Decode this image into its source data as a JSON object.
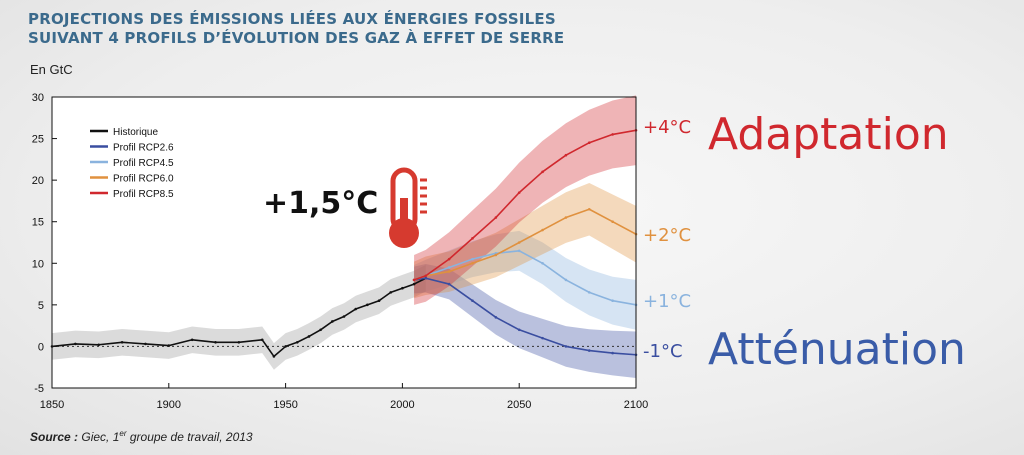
{
  "title": {
    "line1": "PROJECTIONS DES ÉMISSIONS LIÉES AUX ÉNERGIES FOSSILES",
    "line2": "SUIVANT 4 PROFILS D’ÉVOLUTION DES GAZ À EFFET DE SERRE"
  },
  "unit_label": "En GtC",
  "source": {
    "prefix": "Source :",
    "text": "Giec, 1",
    "sup": "er",
    "rest": "groupe de travail, 2013"
  },
  "annotation": {
    "temperature": "+1,5°C",
    "adaptation": "Adaptation",
    "attenuation": "Atténuation"
  },
  "colors": {
    "historique": "#111111",
    "rcp26": "#3a4ea0",
    "rcp45": "#8ab3de",
    "rcp60": "#e0913f",
    "rcp85": "#d0282e",
    "adaptation": "#d0282e",
    "attenuation": "#3a5ca8",
    "thermometer": "#d63a2f"
  },
  "chart_data": {
    "type": "line",
    "title": "",
    "xlabel": "",
    "ylabel": "En GtC",
    "xlim": [
      1850,
      2100
    ],
    "ylim": [
      -5,
      30
    ],
    "xticks": [
      1850,
      1900,
      1950,
      2000,
      2050,
      2100
    ],
    "yticks": [
      -5,
      0,
      5,
      10,
      15,
      20,
      25,
      30
    ],
    "reference_line": 0,
    "legend_position": "top-left",
    "series": [
      {
        "name": "Historique",
        "key": "historique",
        "x": [
          1850,
          1860,
          1870,
          1880,
          1890,
          1900,
          1910,
          1920,
          1930,
          1940,
          1945,
          1950,
          1955,
          1960,
          1965,
          1970,
          1975,
          1980,
          1985,
          1990,
          1995,
          2000,
          2005,
          2010
        ],
        "y": [
          0,
          0.3,
          0.2,
          0.5,
          0.3,
          0.1,
          0.8,
          0.5,
          0.5,
          0.8,
          -1.2,
          0,
          0.5,
          1.2,
          2.0,
          3.0,
          3.6,
          4.5,
          5.0,
          5.5,
          6.5,
          7.0,
          7.5,
          8.2
        ]
      },
      {
        "name": "Profil RCP2.6",
        "key": "rcp26",
        "x": [
          2005,
          2010,
          2020,
          2030,
          2040,
          2050,
          2060,
          2070,
          2080,
          2090,
          2100
        ],
        "y": [
          8.0,
          8.2,
          7.5,
          5.5,
          3.5,
          2.0,
          1.0,
          0.0,
          -0.5,
          -0.8,
          -1.0
        ]
      },
      {
        "name": "Profil RCP4.5",
        "key": "rcp45",
        "x": [
          2005,
          2010,
          2020,
          2030,
          2040,
          2050,
          2060,
          2070,
          2080,
          2090,
          2100
        ],
        "y": [
          8.0,
          8.5,
          9.5,
          10.5,
          11.2,
          11.5,
          10.0,
          8.0,
          6.5,
          5.5,
          5.0
        ]
      },
      {
        "name": "Profil RCP6.0",
        "key": "rcp60",
        "x": [
          2005,
          2010,
          2020,
          2030,
          2040,
          2050,
          2060,
          2070,
          2080,
          2090,
          2100
        ],
        "y": [
          8.0,
          8.5,
          9.0,
          10.0,
          11.0,
          12.5,
          14.0,
          15.5,
          16.5,
          15.0,
          13.5
        ]
      },
      {
        "name": "Profil RCP8.5",
        "key": "rcp85",
        "x": [
          2005,
          2010,
          2020,
          2030,
          2040,
          2050,
          2060,
          2070,
          2080,
          2090,
          2100
        ],
        "y": [
          8.0,
          8.5,
          10.5,
          13.0,
          15.5,
          18.5,
          21.0,
          23.0,
          24.5,
          25.5,
          26.0
        ]
      }
    ],
    "end_labels": [
      {
        "series": "rcp85",
        "text": "+4°C"
      },
      {
        "series": "rcp60",
        "text": "+2°C"
      },
      {
        "series": "rcp45",
        "text": "+1°C"
      },
      {
        "series": "rcp26",
        "text": "-1°C"
      }
    ]
  }
}
